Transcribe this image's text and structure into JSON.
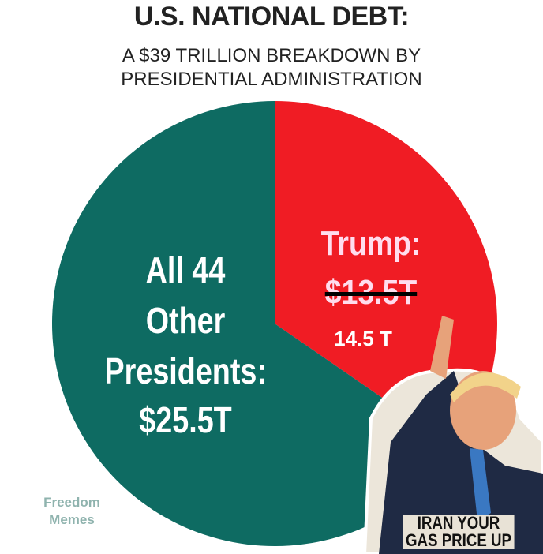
{
  "chart_data": {
    "type": "pie",
    "title": "U.S. NATIONAL DEBT:",
    "subtitle": "A $39 TRILLION BREAKDOWN BY PRESIDENTIAL ADMINISTRATION",
    "categories": [
      "Trump:",
      "All 44 Other Presidents:"
    ],
    "values": [
      13.5,
      25.5
    ],
    "value_labels": [
      "$13.5T",
      "$25.5T"
    ],
    "colors": [
      "#f01c24",
      "#0e6b62"
    ],
    "annotations": [
      "14.5 T",
      "Freedom Memes",
      "IRAN YOUR GAS PRICE UP"
    ]
  }
}
